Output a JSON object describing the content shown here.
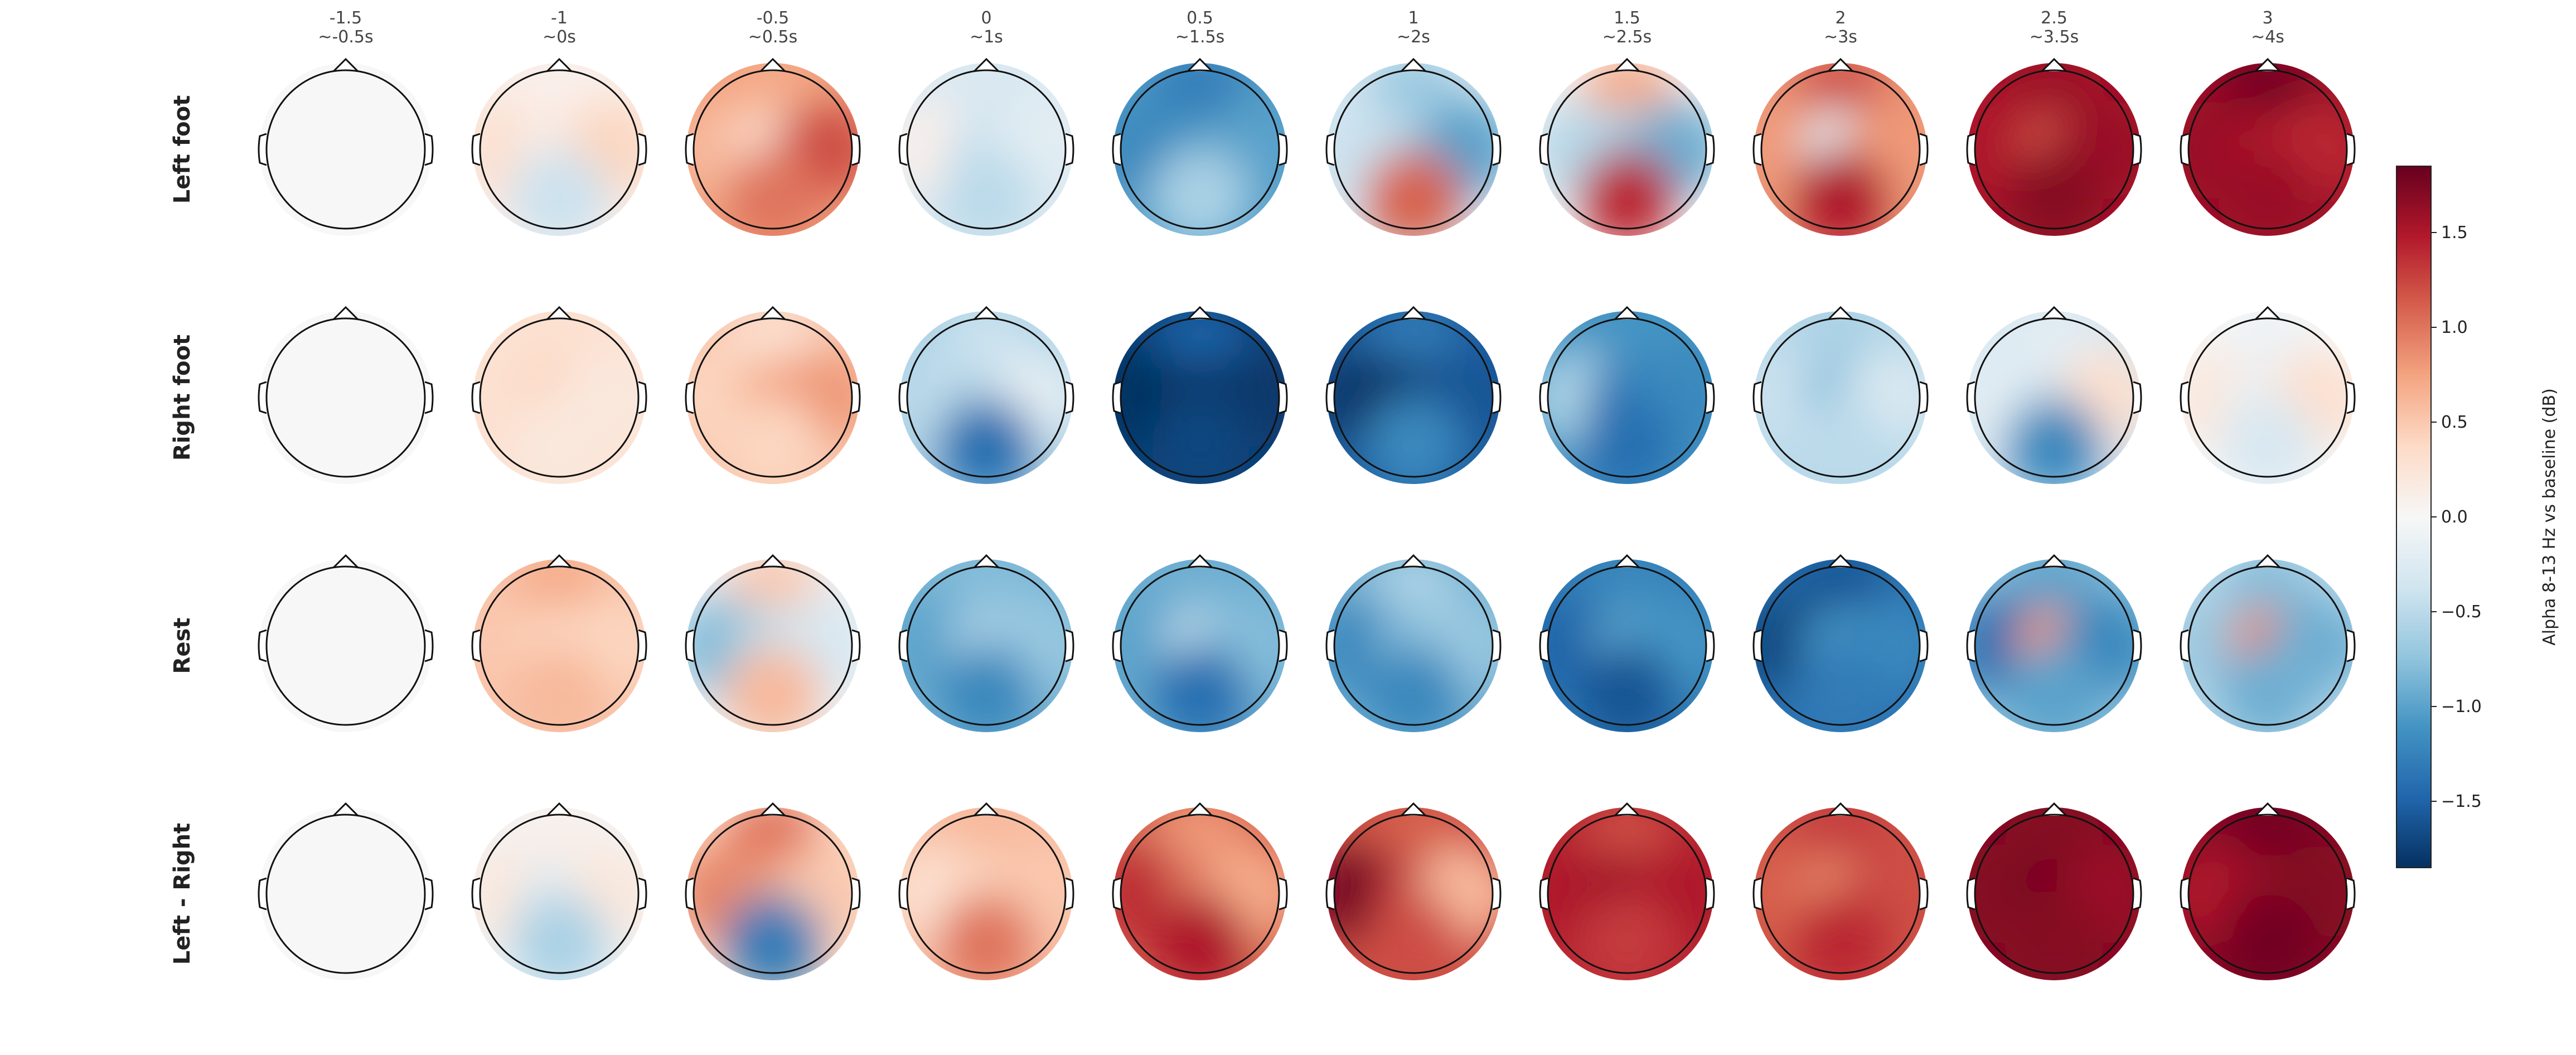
{
  "chart_data": {
    "type": "heatmap",
    "subtype": "EEG topographic maps (grid of scalp heads)",
    "columns": [
      {
        "time": "-1.5",
        "window": "~-0.5s"
      },
      {
        "time": "-1",
        "window": "~0s"
      },
      {
        "time": "-0.5",
        "window": "~0.5s"
      },
      {
        "time": "0",
        "window": "~1s"
      },
      {
        "time": "0.5",
        "window": "~1.5s"
      },
      {
        "time": "1",
        "window": "~2s"
      },
      {
        "time": "1.5",
        "window": "~2.5s"
      },
      {
        "time": "2",
        "window": "~3s"
      },
      {
        "time": "2.5",
        "window": "~3.5s"
      },
      {
        "time": "3",
        "window": "~4s"
      }
    ],
    "rows": [
      "Left foot",
      "Right foot",
      "Rest",
      "Left - Right"
    ],
    "colorbar": {
      "label": "Alpha 8-13 Hz vs baseline (dB)",
      "vmin": -1.85,
      "vmax": 1.85,
      "ticks": [
        -1.5,
        -1.0,
        -0.5,
        0.0,
        0.5,
        1.0,
        1.5
      ],
      "tick_labels": [
        "−1.5",
        "−1.0",
        "−0.5",
        "0.0",
        "0.5",
        "1.0",
        "1.5"
      ],
      "colormap": "RdBu_r",
      "stops": [
        "#053061",
        "#2166ac",
        "#4393c3",
        "#92c5de",
        "#d1e5f0",
        "#f7f7f7",
        "#fddbc7",
        "#f4a582",
        "#d6604d",
        "#b2182b",
        "#67001f"
      ]
    },
    "topomap_regions": [
      "frontal",
      "left",
      "center",
      "right",
      "posterior"
    ],
    "values_dB": [
      [
        [
          0,
          0,
          0,
          0,
          0
        ],
        [
          0.1,
          0.3,
          0.1,
          0.4,
          -0.4
        ],
        [
          0.7,
          0.6,
          0.3,
          1.2,
          1.0
        ],
        [
          -0.3,
          0.1,
          -0.4,
          -0.2,
          -0.5
        ],
        [
          -1.3,
          -1.2,
          -1.1,
          -1.0,
          -0.6
        ],
        [
          -0.7,
          -0.4,
          -0.5,
          -1.0,
          1.1
        ],
        [
          0.7,
          -0.5,
          -0.6,
          -0.9,
          1.4
        ],
        [
          1.2,
          0.8,
          -0.2,
          0.8,
          1.5
        ],
        [
          1.6,
          1.5,
          1.2,
          1.6,
          1.7
        ],
        [
          1.8,
          1.6,
          1.5,
          1.4,
          1.6
        ]
      ],
      [
        [
          0,
          0,
          0,
          0,
          0
        ],
        [
          0.3,
          0.3,
          0.4,
          0.2,
          0.2
        ],
        [
          0.3,
          0.4,
          0.7,
          0.8,
          0.4
        ],
        [
          -0.4,
          -0.5,
          -0.5,
          -0.2,
          -1.4
        ],
        [
          -1.5,
          -1.9,
          -1.8,
          -1.8,
          -1.7
        ],
        [
          -1.3,
          -1.8,
          -1.8,
          -1.6,
          -1.2
        ],
        [
          -1.1,
          -0.6,
          -1.3,
          -1.2,
          -1.4
        ],
        [
          -0.6,
          -0.4,
          -0.8,
          -0.3,
          -0.5
        ],
        [
          -0.2,
          -0.2,
          -0.3,
          0.3,
          -1.2
        ],
        [
          -0.1,
          0.2,
          -0.1,
          0.3,
          -0.3
        ]
      ],
      [
        [
          0,
          0,
          0,
          0,
          0
        ],
        [
          0.7,
          0.5,
          0.4,
          0.4,
          0.6
        ],
        [
          0.5,
          -0.8,
          -0.5,
          -0.3,
          0.6
        ],
        [
          -0.8,
          -1.0,
          -0.6,
          -0.7,
          -1.2
        ],
        [
          -0.9,
          -1.0,
          -0.5,
          -0.8,
          -1.4
        ],
        [
          -0.6,
          -1.2,
          -0.8,
          -0.7,
          -1.2
        ],
        [
          -1.2,
          -1.5,
          -1.0,
          -1.1,
          -1.6
        ],
        [
          -1.6,
          -1.7,
          -1.1,
          -1.2,
          -1.3
        ],
        [
          -1.0,
          -1.4,
          0.8,
          -1.2,
          -1.0
        ],
        [
          -0.8,
          -0.7,
          0.9,
          -0.9,
          -0.9
        ]
      ],
      [
        [
          0,
          0,
          0,
          0,
          0
        ],
        [
          0.1,
          0.2,
          -0.2,
          0.2,
          -0.6
        ],
        [
          1.0,
          0.9,
          0.8,
          0.5,
          -1.3
        ],
        [
          0.6,
          0.3,
          0.4,
          0.5,
          1.0
        ],
        [
          0.8,
          1.4,
          1.0,
          0.7,
          1.5
        ],
        [
          1.1,
          1.8,
          1.3,
          0.6,
          1.2
        ],
        [
          1.2,
          1.5,
          1.6,
          1.5,
          1.3
        ],
        [
          1.3,
          1.1,
          0.9,
          1.2,
          1.4
        ],
        [
          1.7,
          1.7,
          1.8,
          1.6,
          1.7
        ],
        [
          1.8,
          1.5,
          1.6,
          1.7,
          1.8
        ]
      ]
    ]
  }
}
